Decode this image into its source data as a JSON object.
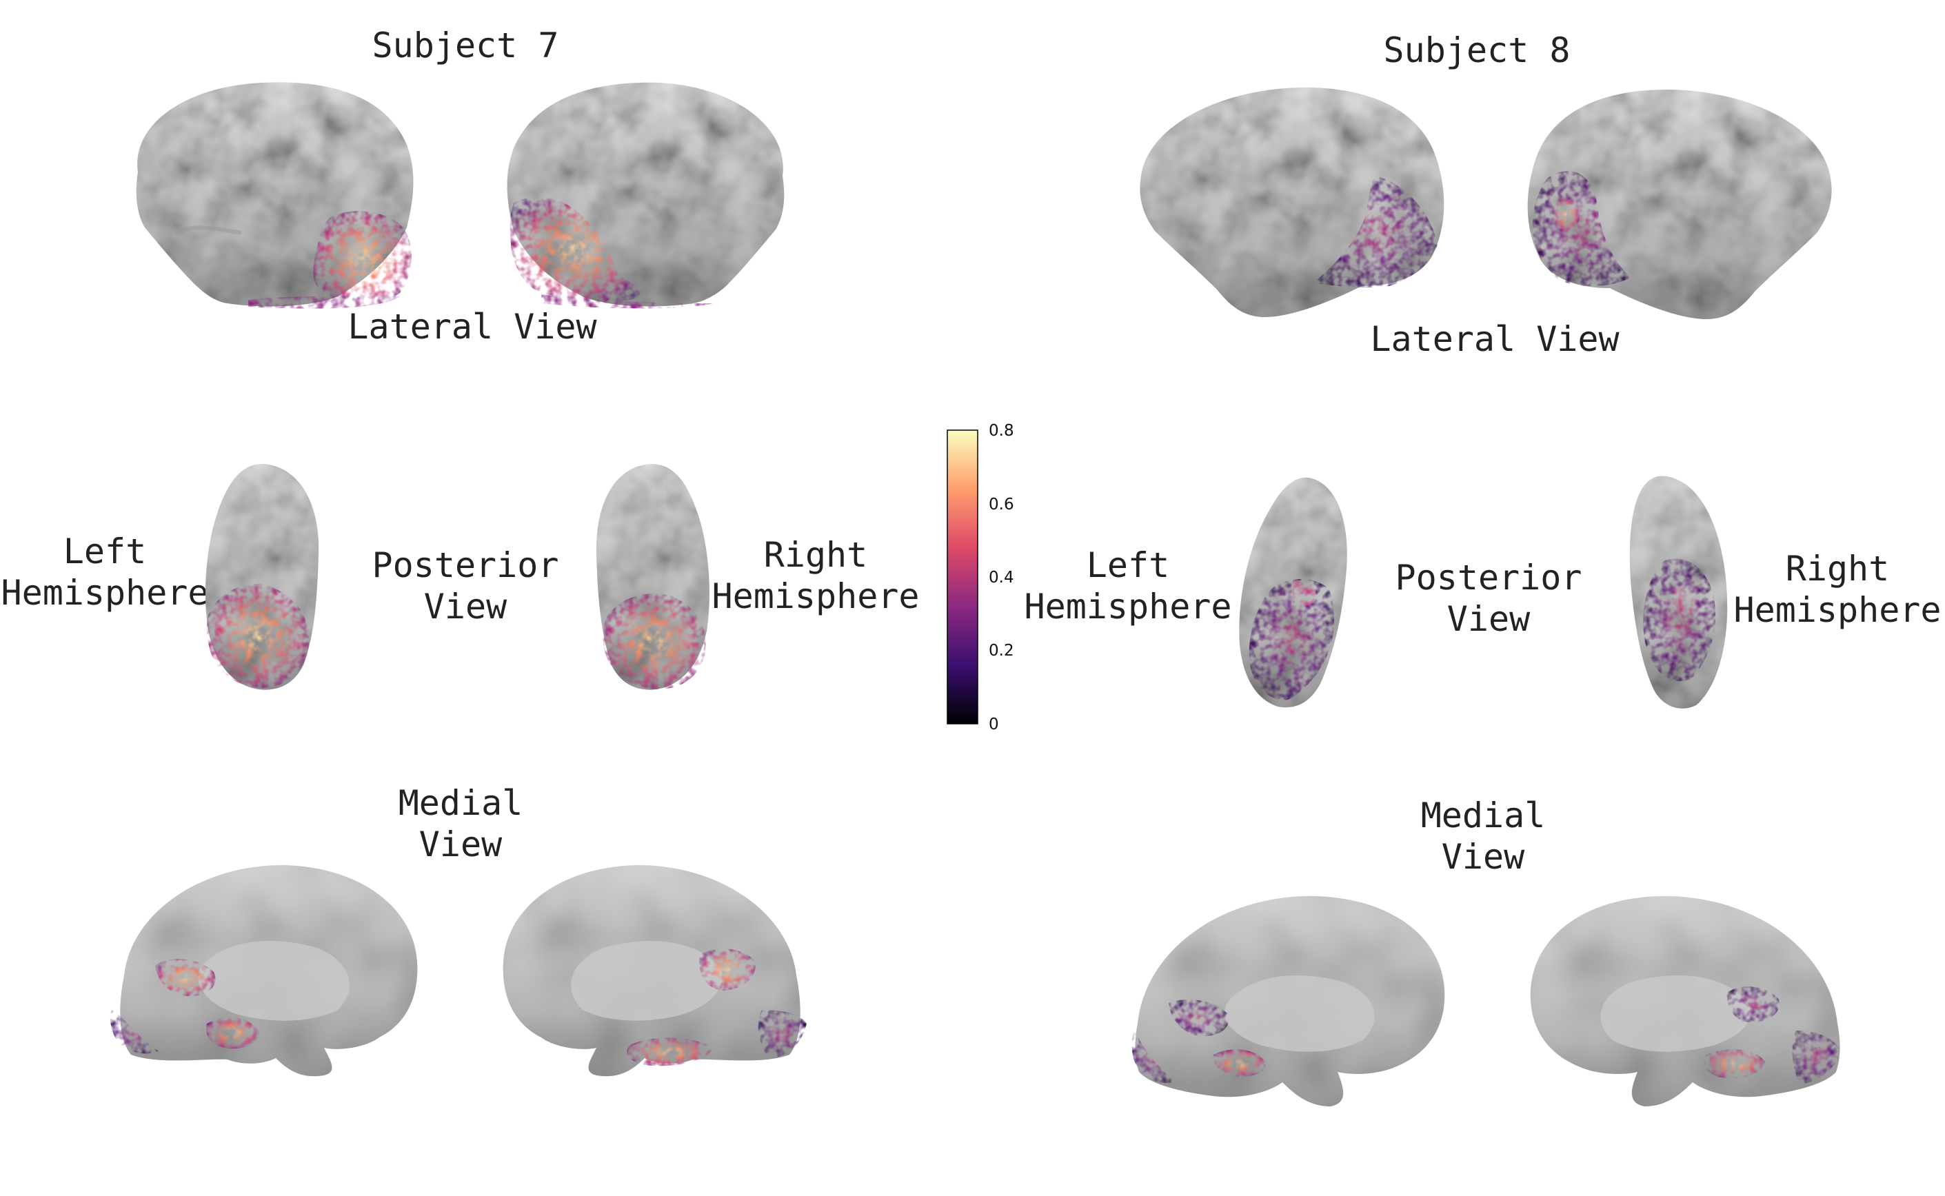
{
  "subjects": [
    {
      "title": "Subject 7",
      "lateral_label": "Lateral View",
      "posterior_label": [
        "Posterior",
        "View"
      ],
      "medial_label": [
        "Medial",
        "View"
      ],
      "left_label": [
        "Left",
        "Hemisphere"
      ],
      "right_label": [
        "Right",
        "Hemisphere"
      ]
    },
    {
      "title": "Subject 8",
      "lateral_label": "Lateral View",
      "posterior_label": [
        "Posterior",
        "View"
      ],
      "medial_label": [
        "Medial",
        "View"
      ],
      "left_label": [
        "Left",
        "Hemisphere"
      ],
      "right_label": [
        "Right",
        "Hemisphere"
      ]
    }
  ],
  "colorbar": {
    "colormap": "magma",
    "min": 0,
    "max": 0.8,
    "ticks": [
      "0.8",
      "0.6",
      "0.4",
      "0.2",
      "0"
    ],
    "colors": [
      "#000004",
      "#3b0f70",
      "#8c2981",
      "#de4968",
      "#fe9f6d",
      "#fcfdbf"
    ]
  },
  "colors": {
    "cortex_light": "#d4d4d4",
    "cortex_dark": "#8e8e8e",
    "label_text": "#222222"
  }
}
